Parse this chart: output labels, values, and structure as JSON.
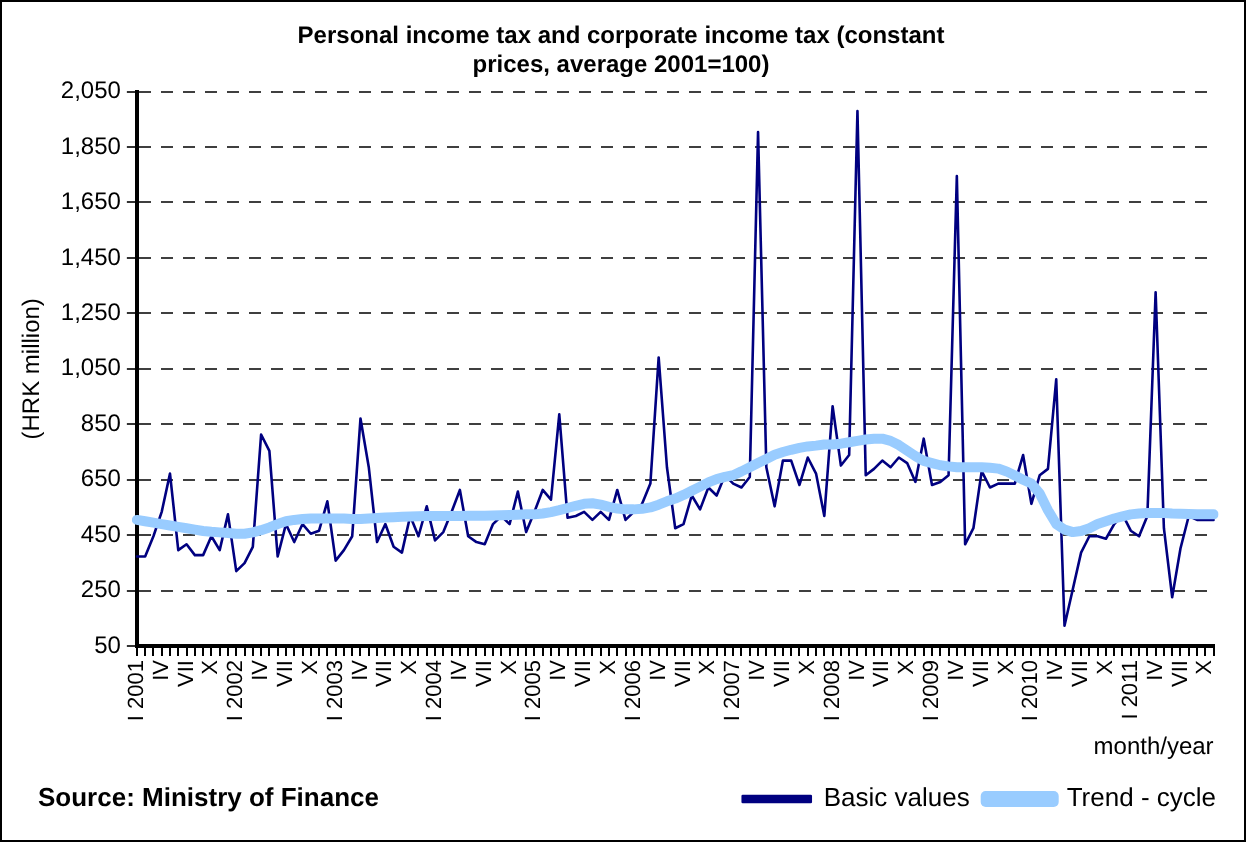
{
  "chart_data": {
    "type": "line",
    "title": "Personal income tax and corporate income tax (constant prices, average 2001=100)",
    "ylabel": "(HRK million)",
    "xlabel": "month/year",
    "annotations": [
      "Source: Ministry of Finance"
    ],
    "categories": [
      "I 2001",
      null,
      null,
      "IV",
      null,
      null,
      "VII",
      null,
      null,
      "X",
      null,
      null,
      "I 2002",
      null,
      null,
      "IV",
      null,
      null,
      "VII",
      null,
      null,
      "X",
      null,
      null,
      "I 2003",
      null,
      null,
      "IV",
      null,
      null,
      "VII",
      null,
      null,
      "X",
      null,
      null,
      "I 2004",
      null,
      null,
      "IV",
      null,
      null,
      "VII",
      null,
      null,
      "X",
      null,
      null,
      "I 2005",
      null,
      null,
      "IV",
      null,
      null,
      "VII",
      null,
      null,
      "X",
      null,
      null,
      "I 2006",
      null,
      null,
      "IV",
      null,
      null,
      "VII",
      null,
      null,
      "X",
      null,
      null,
      "I 2007",
      null,
      null,
      "IV",
      null,
      null,
      "VII",
      null,
      null,
      "X",
      null,
      null,
      "I 2008",
      null,
      null,
      "IV",
      null,
      null,
      "VII",
      null,
      null,
      "X",
      null,
      null,
      "I 2009",
      null,
      null,
      "IV",
      null,
      null,
      "VII",
      null,
      null,
      "X",
      null,
      null,
      "I 2010",
      null,
      null,
      "IV",
      null,
      null,
      "VII",
      null,
      null,
      "X",
      null,
      null,
      "I 2011",
      null,
      null,
      "IV",
      null,
      null,
      "VII",
      null,
      null,
      "X",
      null
    ],
    "series": [
      {
        "name": "Basic values",
        "color": "#000080",
        "values": [
          373,
          373,
          446,
          534,
          672,
          396,
          417,
          378,
          378,
          446,
          396,
          525,
          320,
          349,
          408,
          813,
          754,
          373,
          490,
          425,
          490,
          455,
          466,
          572,
          358,
          396,
          446,
          871,
          695,
          425,
          490,
          408,
          387,
          519,
          446,
          554,
          431,
          461,
          534,
          613,
          446,
          425,
          417,
          490,
          519,
          490,
          607,
          461,
          534,
          613,
          578,
          886,
          513,
          519,
          534,
          505,
          534,
          505,
          613,
          505,
          534,
          563,
          636,
          1091,
          695,
          475,
          490,
          593,
          543,
          622,
          593,
          666,
          636,
          622,
          660,
          1904,
          695,
          554,
          719,
          719,
          631,
          730,
          672,
          519,
          915,
          701,
          739,
          1980,
          666,
          689,
          719,
          695,
          730,
          710,
          642,
          798,
          631,
          642,
          666,
          1745,
          417,
          475,
          681,
          622,
          636,
          636,
          636,
          739,
          563,
          666,
          689,
          1012,
          123,
          255,
          387,
          446,
          446,
          437,
          490,
          525,
          466,
          446,
          519,
          1326,
          475,
          226,
          402,
          519,
          505,
          505,
          505
        ]
      },
      {
        "name": "Trend - cycle",
        "color": "#99ccff",
        "values": [
          505,
          500,
          495,
          490,
          485,
          480,
          475,
          470,
          465,
          462,
          460,
          458,
          455,
          455,
          460,
          468,
          478,
          490,
          500,
          505,
          508,
          510,
          510,
          510,
          510,
          510,
          508,
          508,
          510,
          512,
          514,
          515,
          516,
          517,
          518,
          519,
          519,
          519,
          519,
          519,
          520,
          520,
          520,
          521,
          522,
          523,
          524,
          525,
          525,
          528,
          533,
          540,
          548,
          556,
          563,
          565,
          560,
          552,
          546,
          543,
          543,
          545,
          550,
          560,
          572,
          582,
          595,
          610,
          625,
          640,
          652,
          660,
          666,
          680,
          695,
          710,
          725,
          740,
          750,
          758,
          765,
          770,
          773,
          777,
          777,
          780,
          785,
          790,
          795,
          798,
          798,
          790,
          775,
          755,
          735,
          718,
          710,
          702,
          698,
          695,
          695,
          695,
          695,
          693,
          690,
          680,
          665,
          650,
          636,
          600,
          540,
          490,
          470,
          461,
          465,
          475,
          490,
          500,
          510,
          518,
          525,
          528,
          530,
          530,
          530,
          528,
          527,
          526,
          525,
          525,
          525
        ]
      }
    ],
    "ylim": [
      50,
      2050
    ],
    "yticks": [
      50,
      250,
      450,
      650,
      850,
      {
        "value": 1050,
        "label": "1,050"
      },
      {
        "value": 1250,
        "label": "1,250"
      },
      {
        "value": 1450,
        "label": "1,450"
      },
      {
        "value": 1650,
        "label": "1,650"
      },
      {
        "value": 1850,
        "label": "1,850"
      },
      {
        "value": 2050,
        "label": "2,050"
      }
    ],
    "grid": "y",
    "legend": "bottom",
    "marker": "none",
    "line_style": "solid"
  }
}
